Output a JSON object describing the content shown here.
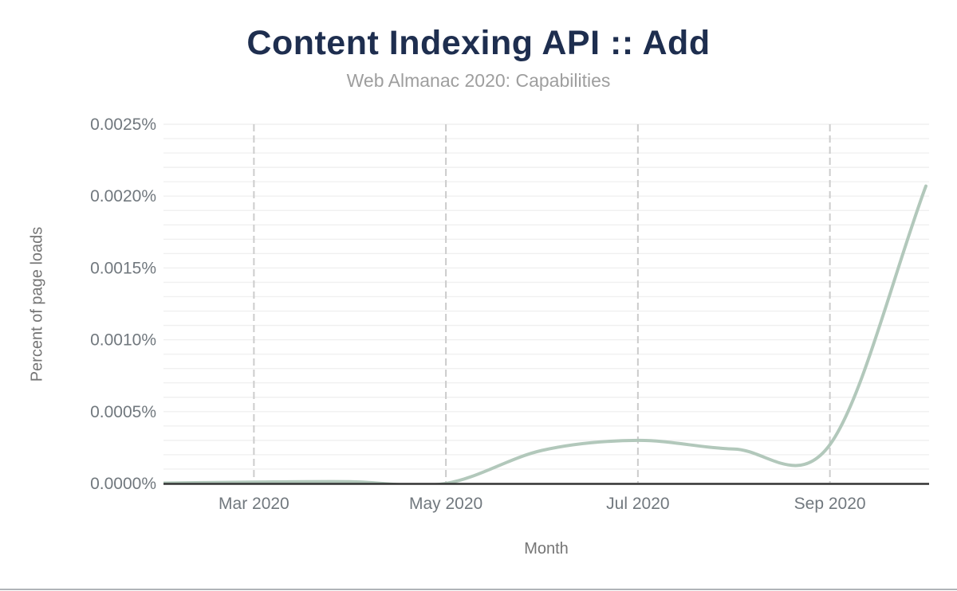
{
  "header": {
    "title": "Content Indexing API :: Add",
    "subtitle": "Web Almanac 2020: Capabilities"
  },
  "chart_data": {
    "type": "line",
    "title": "Content Indexing API :: Add",
    "subtitle": "Web Almanac 2020: Capabilities",
    "xlabel": "Month",
    "ylabel": "Percent of page loads",
    "unit": "percent of page loads (%)",
    "x": [
      "Feb 2020",
      "Mar 2020",
      "Apr 2020",
      "May 2020",
      "Jun 2020",
      "Jul 2020",
      "Aug 2020",
      "Sep 2020",
      "Oct 2020"
    ],
    "values": [
      2e-06,
      1e-05,
      1.3e-05,
      0,
      0.00023,
      0.0003,
      0.00024,
      0.00027,
      0.00207
    ],
    "x_tick_labels": [
      "Mar 2020",
      "May 2020",
      "Jul 2020",
      "Sep 2020"
    ],
    "x_tick_month_indices": [
      1,
      3,
      5,
      7
    ],
    "y_tick_labels": [
      "0.0000%",
      "0.0005%",
      "0.0010%",
      "0.0015%",
      "0.0020%",
      "0.0025%"
    ],
    "y_tick_values": [
      0,
      0.0005,
      0.001,
      0.0015,
      0.002,
      0.0025
    ],
    "ylim": [
      0,
      0.0025
    ],
    "y_minor_step": 0.0001,
    "grid": {
      "horizontal_minor": true,
      "vertical_dashed_at_x_ticks": true
    },
    "legend": "none",
    "line_style": {
      "smoothing": "catmull-rom",
      "width": 4
    }
  },
  "colors": {
    "background": "#ffffff",
    "title": "#1e2e4f",
    "subtitle": "#9e9e9e",
    "tick_label": "#71787e",
    "axis_title": "#757575",
    "grid_minor": "#f0f0f0",
    "grid_vertical_dashed": "#cccccc",
    "axis_line": "#333333",
    "series_line": "#b2c8bb",
    "bottom_divider": "#b0b4b8"
  }
}
